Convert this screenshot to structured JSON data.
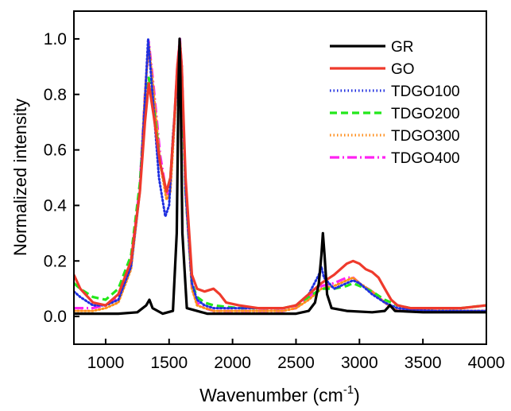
{
  "chart_data": {
    "type": "line",
    "xlabel_main": "Wavenumber (cm",
    "xlabel_sup": "-1",
    "xlabel_close": ")",
    "ylabel": "Normalized intensity",
    "xlim": [
      750,
      4000
    ],
    "ylim": [
      -0.1,
      1.1
    ],
    "x_ticks": [
      "1000",
      "1500",
      "2000",
      "2500",
      "3000",
      "3500",
      "4000"
    ],
    "y_ticks": [
      "0.0",
      "0.2",
      "0.4",
      "0.6",
      "0.8",
      "1.0"
    ],
    "legend_position": "top-right",
    "series": [
      {
        "name": "GR",
        "color": "#000000",
        "style": "solid",
        "x": [
          750,
          900,
          1100,
          1250,
          1320,
          1345,
          1370,
          1450,
          1530,
          1560,
          1575,
          1583,
          1590,
          1605,
          1640,
          1800,
          2200,
          2500,
          2600,
          2650,
          2680,
          2700,
          2712,
          2725,
          2745,
          2780,
          2900,
          3100,
          3200,
          3240,
          3280,
          3500,
          4000
        ],
        "y": [
          0.01,
          0.01,
          0.01,
          0.015,
          0.04,
          0.06,
          0.03,
          0.01,
          0.02,
          0.3,
          0.85,
          1.0,
          0.85,
          0.3,
          0.03,
          0.01,
          0.01,
          0.01,
          0.02,
          0.05,
          0.12,
          0.22,
          0.3,
          0.22,
          0.08,
          0.03,
          0.02,
          0.015,
          0.02,
          0.04,
          0.02,
          0.015,
          0.015
        ]
      },
      {
        "name": "GO",
        "color": "#ef3a2c",
        "style": "solid",
        "x": [
          750,
          800,
          900,
          1000,
          1100,
          1200,
          1270,
          1310,
          1340,
          1380,
          1430,
          1480,
          1510,
          1540,
          1565,
          1585,
          1600,
          1630,
          1680,
          1720,
          1780,
          1850,
          1900,
          1950,
          2050,
          2200,
          2400,
          2500,
          2600,
          2700,
          2800,
          2900,
          2950,
          3000,
          3050,
          3100,
          3150,
          3200,
          3250,
          3300,
          3400,
          3600,
          3800,
          4000
        ],
        "y": [
          0.15,
          0.1,
          0.05,
          0.04,
          0.08,
          0.2,
          0.45,
          0.7,
          0.84,
          0.72,
          0.55,
          0.45,
          0.5,
          0.7,
          0.9,
          0.99,
          0.9,
          0.5,
          0.15,
          0.1,
          0.09,
          0.1,
          0.08,
          0.05,
          0.04,
          0.03,
          0.03,
          0.04,
          0.08,
          0.12,
          0.15,
          0.19,
          0.2,
          0.19,
          0.17,
          0.16,
          0.14,
          0.1,
          0.06,
          0.04,
          0.03,
          0.03,
          0.03,
          0.04
        ]
      },
      {
        "name": "TDGO100",
        "color": "#1f2fe0",
        "style": "dotted",
        "x": [
          750,
          800,
          900,
          1000,
          1100,
          1200,
          1270,
          1310,
          1335,
          1370,
          1420,
          1470,
          1500,
          1530,
          1565,
          1585,
          1600,
          1630,
          1680,
          1720,
          1780,
          1850,
          1900,
          2050,
          2200,
          2400,
          2500,
          2600,
          2680,
          2700,
          2720,
          2800,
          2900,
          2950,
          3000,
          3050,
          3100,
          3200,
          3300,
          3400,
          3600,
          3800,
          4000
        ],
        "y": [
          0.09,
          0.07,
          0.04,
          0.04,
          0.06,
          0.18,
          0.45,
          0.78,
          1.0,
          0.8,
          0.5,
          0.36,
          0.4,
          0.65,
          0.85,
          0.98,
          0.9,
          0.45,
          0.12,
          0.06,
          0.04,
          0.03,
          0.03,
          0.03,
          0.03,
          0.03,
          0.04,
          0.08,
          0.15,
          0.18,
          0.14,
          0.1,
          0.12,
          0.13,
          0.12,
          0.1,
          0.08,
          0.05,
          0.03,
          0.025,
          0.02,
          0.02,
          0.02
        ]
      },
      {
        "name": "TDGO200",
        "color": "#22e81a",
        "style": "dashed",
        "x": [
          750,
          800,
          900,
          1000,
          1100,
          1200,
          1270,
          1310,
          1340,
          1380,
          1430,
          1480,
          1510,
          1540,
          1565,
          1585,
          1600,
          1630,
          1680,
          1720,
          1780,
          1850,
          2050,
          2200,
          2400,
          2500,
          2600,
          2700,
          2800,
          2900,
          2950,
          3000,
          3100,
          3200,
          3300,
          3400,
          3600,
          3800,
          4000
        ],
        "y": [
          0.12,
          0.1,
          0.07,
          0.06,
          0.1,
          0.22,
          0.48,
          0.75,
          0.86,
          0.75,
          0.55,
          0.45,
          0.5,
          0.7,
          0.88,
          0.97,
          0.85,
          0.45,
          0.12,
          0.07,
          0.05,
          0.04,
          0.03,
          0.03,
          0.03,
          0.04,
          0.07,
          0.1,
          0.1,
          0.11,
          0.12,
          0.11,
          0.09,
          0.06,
          0.04,
          0.03,
          0.03,
          0.03,
          0.04
        ]
      },
      {
        "name": "TDGO300",
        "color": "#ff8d1a",
        "style": "dotted",
        "x": [
          750,
          800,
          900,
          1000,
          1100,
          1200,
          1270,
          1310,
          1340,
          1380,
          1430,
          1480,
          1510,
          1540,
          1565,
          1585,
          1600,
          1630,
          1680,
          1720,
          1780,
          1850,
          2050,
          2200,
          2400,
          2500,
          2600,
          2700,
          2800,
          2900,
          2950,
          3000,
          3100,
          3200,
          3300,
          3400,
          3600,
          3800,
          4000
        ],
        "y": [
          0.02,
          0.02,
          0.02,
          0.03,
          0.05,
          0.17,
          0.45,
          0.8,
          0.98,
          0.8,
          0.55,
          0.42,
          0.45,
          0.68,
          0.88,
          0.99,
          0.9,
          0.45,
          0.1,
          0.04,
          0.03,
          0.02,
          0.02,
          0.02,
          0.02,
          0.03,
          0.06,
          0.1,
          0.11,
          0.13,
          0.14,
          0.12,
          0.09,
          0.05,
          0.02,
          0.02,
          0.02,
          0.02,
          0.02
        ]
      },
      {
        "name": "TDGO400",
        "color": "#ff22f2",
        "style": "dashdot",
        "x": [
          750,
          800,
          900,
          1000,
          1100,
          1200,
          1270,
          1310,
          1340,
          1380,
          1430,
          1480,
          1510,
          1540,
          1565,
          1585,
          1600,
          1630,
          1680,
          1720,
          1780,
          1850,
          2050,
          2200,
          2400,
          2500,
          2600,
          2700,
          2800,
          2900,
          2950,
          3000,
          3100,
          3200,
          3300,
          3400,
          3600,
          3800,
          4000
        ],
        "y": [
          0.03,
          0.03,
          0.03,
          0.04,
          0.07,
          0.2,
          0.47,
          0.8,
          0.99,
          0.82,
          0.58,
          0.44,
          0.47,
          0.7,
          0.9,
          1.0,
          0.9,
          0.45,
          0.1,
          0.05,
          0.03,
          0.02,
          0.02,
          0.02,
          0.02,
          0.03,
          0.07,
          0.11,
          0.12,
          0.14,
          0.14,
          0.12,
          0.09,
          0.05,
          0.02,
          0.02,
          0.02,
          0.02,
          0.02
        ]
      }
    ]
  }
}
